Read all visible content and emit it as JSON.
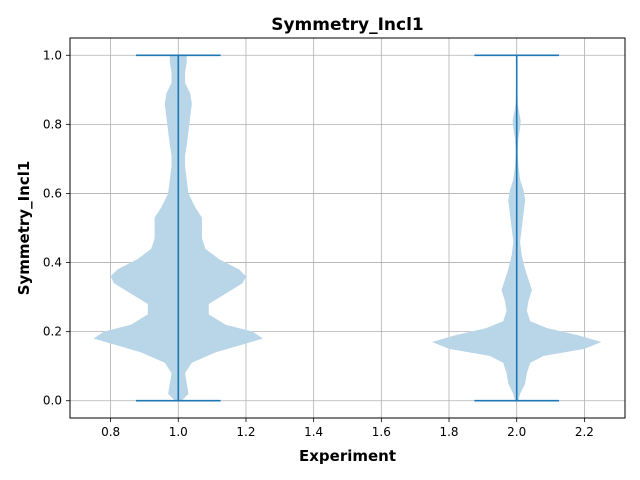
{
  "chart_data": {
    "type": "violin",
    "title": "Symmetry_Incl1",
    "xlabel": "Experiment",
    "ylabel": "Symmetry_Incl1",
    "xlim": [
      0.68,
      2.32
    ],
    "ylim": [
      -0.05,
      1.05
    ],
    "xticks": [
      0.8,
      1.0,
      1.2,
      1.4,
      1.6,
      1.8,
      2.0,
      2.2
    ],
    "xtick_labels": [
      "0.8",
      "1.0",
      "1.2",
      "1.4",
      "1.6",
      "1.8",
      "2.0",
      "2.2"
    ],
    "yticks": [
      0.0,
      0.2,
      0.4,
      0.6,
      0.8,
      1.0
    ],
    "ytick_labels": [
      "0.0",
      "0.2",
      "0.4",
      "0.6",
      "0.8",
      "1.0"
    ],
    "grid": true,
    "fill_color": "#b9d5e8",
    "line_color": "#1f77b4",
    "series": [
      {
        "position": 1.0,
        "min": 0.0,
        "max": 1.0,
        "density": [
          [
            0.0,
            0.01
          ],
          [
            0.02,
            0.03
          ],
          [
            0.05,
            0.025
          ],
          [
            0.08,
            0.02
          ],
          [
            0.11,
            0.04
          ],
          [
            0.14,
            0.11
          ],
          [
            0.16,
            0.18
          ],
          [
            0.18,
            0.25
          ],
          [
            0.2,
            0.22
          ],
          [
            0.22,
            0.14
          ],
          [
            0.25,
            0.09
          ],
          [
            0.28,
            0.09
          ],
          [
            0.31,
            0.14
          ],
          [
            0.34,
            0.19
          ],
          [
            0.36,
            0.2
          ],
          [
            0.38,
            0.18
          ],
          [
            0.41,
            0.12
          ],
          [
            0.44,
            0.08
          ],
          [
            0.47,
            0.07
          ],
          [
            0.5,
            0.07
          ],
          [
            0.53,
            0.07
          ],
          [
            0.56,
            0.05
          ],
          [
            0.6,
            0.03
          ],
          [
            0.64,
            0.025
          ],
          [
            0.68,
            0.02
          ],
          [
            0.71,
            0.02
          ],
          [
            0.74,
            0.025
          ],
          [
            0.78,
            0.03
          ],
          [
            0.82,
            0.035
          ],
          [
            0.86,
            0.04
          ],
          [
            0.89,
            0.035
          ],
          [
            0.92,
            0.02
          ],
          [
            0.95,
            0.02
          ],
          [
            0.98,
            0.025
          ],
          [
            1.0,
            0.025
          ]
        ]
      },
      {
        "position": 2.0,
        "min": 0.0,
        "max": 1.0,
        "density": [
          [
            0.0,
            0.005
          ],
          [
            0.02,
            0.01
          ],
          [
            0.05,
            0.025
          ],
          [
            0.08,
            0.03
          ],
          [
            0.11,
            0.04
          ],
          [
            0.13,
            0.08
          ],
          [
            0.15,
            0.2
          ],
          [
            0.17,
            0.25
          ],
          [
            0.19,
            0.18
          ],
          [
            0.21,
            0.09
          ],
          [
            0.23,
            0.04
          ],
          [
            0.26,
            0.03
          ],
          [
            0.29,
            0.035
          ],
          [
            0.32,
            0.045
          ],
          [
            0.35,
            0.035
          ],
          [
            0.38,
            0.025
          ],
          [
            0.42,
            0.015
          ],
          [
            0.46,
            0.01
          ],
          [
            0.5,
            0.015
          ],
          [
            0.54,
            0.02
          ],
          [
            0.58,
            0.025
          ],
          [
            0.61,
            0.02
          ],
          [
            0.64,
            0.01
          ],
          [
            0.68,
            0.005
          ],
          [
            0.72,
            0.003
          ],
          [
            0.76,
            0.005
          ],
          [
            0.79,
            0.01
          ],
          [
            0.81,
            0.012
          ],
          [
            0.83,
            0.008
          ],
          [
            0.86,
            0.003
          ],
          [
            0.9,
            0.002
          ],
          [
            0.95,
            0.0
          ],
          [
            1.0,
            0.0
          ]
        ]
      }
    ]
  }
}
